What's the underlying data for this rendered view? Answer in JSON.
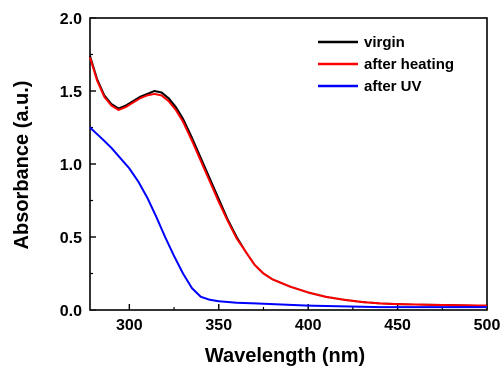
{
  "chart_data": {
    "type": "line",
    "xlabel": "Wavelength (nm)",
    "ylabel": "Absorbance (a.u.)",
    "xlim": [
      278,
      500
    ],
    "ylim": [
      0.0,
      2.0
    ],
    "x_ticks": [
      300,
      350,
      400,
      450,
      500
    ],
    "x_tick_labels": [
      "300",
      "350",
      "400",
      "450",
      "500"
    ],
    "y_ticks": [
      0.0,
      0.5,
      1.0,
      1.5,
      2.0
    ],
    "y_tick_labels": [
      "0.0",
      "0.5",
      "1.0",
      "1.5",
      "2.0"
    ],
    "grid": false,
    "legend_position": "top-right",
    "series": [
      {
        "name": "virgin",
        "color": "#000000",
        "x": [
          278,
          282,
          286,
          290,
          294,
          298,
          302,
          306,
          310,
          314,
          318,
          322,
          326,
          330,
          335,
          340,
          345,
          350,
          355,
          360,
          365,
          370,
          375,
          380,
          390,
          400,
          410,
          420,
          430,
          440,
          450,
          470,
          500
        ],
        "y": [
          1.74,
          1.58,
          1.47,
          1.41,
          1.38,
          1.4,
          1.43,
          1.46,
          1.48,
          1.5,
          1.49,
          1.45,
          1.39,
          1.31,
          1.18,
          1.04,
          0.9,
          0.76,
          0.62,
          0.5,
          0.4,
          0.31,
          0.25,
          0.21,
          0.16,
          0.12,
          0.09,
          0.07,
          0.055,
          0.045,
          0.04,
          0.035,
          0.03
        ]
      },
      {
        "name": "after heating",
        "color": "#ff0000",
        "x": [
          278,
          282,
          286,
          290,
          294,
          298,
          302,
          306,
          310,
          314,
          318,
          322,
          326,
          330,
          335,
          340,
          345,
          350,
          355,
          360,
          365,
          370,
          375,
          380,
          390,
          400,
          410,
          420,
          430,
          440,
          450,
          470,
          500
        ],
        "y": [
          1.73,
          1.57,
          1.46,
          1.4,
          1.37,
          1.39,
          1.42,
          1.45,
          1.47,
          1.48,
          1.47,
          1.43,
          1.37,
          1.29,
          1.16,
          1.02,
          0.88,
          0.74,
          0.61,
          0.49,
          0.4,
          0.31,
          0.25,
          0.21,
          0.16,
          0.12,
          0.09,
          0.07,
          0.055,
          0.045,
          0.04,
          0.035,
          0.03
        ]
      },
      {
        "name": "after UV",
        "color": "#0000ff",
        "x": [
          278,
          285,
          290,
          295,
          300,
          305,
          310,
          315,
          320,
          325,
          330,
          335,
          340,
          345,
          350,
          360,
          370,
          380,
          400,
          420,
          440,
          460,
          480,
          500
        ],
        "y": [
          1.25,
          1.17,
          1.11,
          1.04,
          0.97,
          0.88,
          0.77,
          0.64,
          0.5,
          0.37,
          0.25,
          0.15,
          0.09,
          0.07,
          0.06,
          0.05,
          0.045,
          0.04,
          0.03,
          0.025,
          0.02,
          0.02,
          0.02,
          0.02
        ]
      }
    ]
  }
}
